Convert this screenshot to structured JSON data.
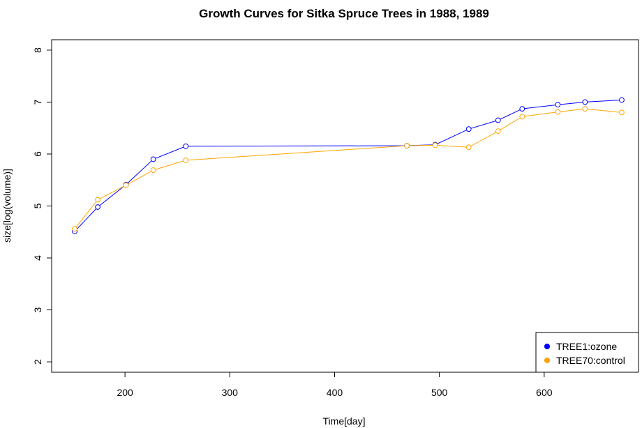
{
  "chart_data": {
    "type": "line",
    "title": "Growth Curves for Sitka Spruce Trees in 1988, 1989",
    "xlabel": "Time[day]",
    "ylabel": "size[log(volume)]",
    "xlim": [
      130,
      690
    ],
    "ylim": [
      1.8,
      8.2
    ],
    "x_ticks": [
      200,
      300,
      400,
      500,
      600
    ],
    "y_ticks": [
      2,
      3,
      4,
      5,
      6,
      7,
      8
    ],
    "grid": false,
    "legend_position": "bottom-right",
    "x": [
      152,
      174,
      201,
      227,
      258,
      469,
      496,
      528,
      556,
      579,
      613,
      639,
      674
    ],
    "series": [
      {
        "name": "TREE1:ozone",
        "color": "#0000FF",
        "values": [
          4.51,
          4.98,
          5.41,
          5.9,
          6.15,
          6.16,
          6.18,
          6.48,
          6.65,
          6.87,
          6.95,
          7.0,
          7.04
        ]
      },
      {
        "name": "TREE70:control",
        "color": "#FFA500",
        "values": [
          4.56,
          5.12,
          5.4,
          5.69,
          5.88,
          6.16,
          6.17,
          6.13,
          6.44,
          6.72,
          6.81,
          6.87,
          6.8
        ]
      }
    ]
  }
}
